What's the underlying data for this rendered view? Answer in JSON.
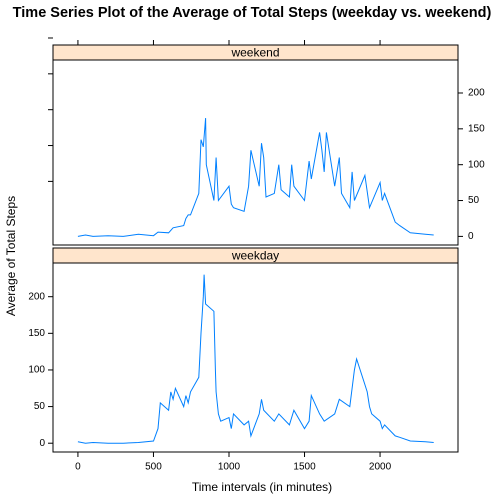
{
  "chart_data": {
    "type": "line",
    "title": "Time Series Plot of the Average of Total Steps (weekday vs. weekend)",
    "xlabel": "Time intervals (in minutes)",
    "ylabel": "Average of Total Steps",
    "xlim": [
      -165,
      2516
    ],
    "xticks": [
      0,
      500,
      1000,
      1500,
      2000
    ],
    "ylim": [
      -12,
      246
    ],
    "yticks": [
      0,
      50,
      100,
      150,
      200
    ],
    "series": [
      {
        "name": "weekend",
        "color": "#0080ff",
        "x": [
          0,
          50,
          100,
          200,
          300,
          400,
          500,
          530,
          600,
          630,
          700,
          715,
          730,
          745,
          800,
          815,
          830,
          845,
          850,
          900,
          915,
          930,
          1000,
          1015,
          1030,
          1100,
          1130,
          1145,
          1200,
          1215,
          1230,
          1245,
          1300,
          1330,
          1345,
          1400,
          1415,
          1430,
          1500,
          1530,
          1545,
          1600,
          1615,
          1630,
          1645,
          1700,
          1730,
          1745,
          1800,
          1815,
          1830,
          1900,
          1930,
          2000,
          2015,
          2030,
          2100,
          2130,
          2200,
          2300,
          2355
        ],
        "values": [
          0,
          2,
          0,
          1,
          0,
          3,
          1,
          6,
          5,
          12,
          15,
          25,
          30,
          30,
          60,
          135,
          125,
          165,
          100,
          50,
          110,
          50,
          70,
          45,
          40,
          35,
          70,
          120,
          70,
          130,
          110,
          55,
          60,
          100,
          65,
          55,
          100,
          70,
          50,
          105,
          80,
          145,
          120,
          90,
          145,
          70,
          110,
          60,
          40,
          90,
          50,
          85,
          40,
          75,
          50,
          60,
          20,
          15,
          5,
          3,
          2
        ]
      },
      {
        "name": "weekday",
        "color": "#0080ff",
        "x": [
          0,
          50,
          100,
          200,
          300,
          400,
          500,
          530,
          545,
          600,
          615,
          630,
          645,
          700,
          715,
          730,
          745,
          800,
          815,
          830,
          835,
          845,
          900,
          910,
          915,
          930,
          945,
          1000,
          1015,
          1030,
          1100,
          1130,
          1145,
          1200,
          1215,
          1230,
          1300,
          1330,
          1400,
          1430,
          1500,
          1530,
          1545,
          1600,
          1630,
          1700,
          1730,
          1800,
          1830,
          1845,
          1900,
          1915,
          1930,
          1945,
          2000,
          2015,
          2030,
          2100,
          2130,
          2200,
          2300,
          2355
        ],
        "values": [
          2,
          0,
          1,
          0,
          0,
          1,
          3,
          20,
          55,
          45,
          70,
          60,
          75,
          50,
          65,
          55,
          70,
          90,
          150,
          200,
          230,
          190,
          180,
          100,
          70,
          40,
          30,
          35,
          20,
          40,
          25,
          30,
          10,
          40,
          60,
          45,
          30,
          40,
          25,
          45,
          20,
          30,
          65,
          40,
          30,
          40,
          60,
          50,
          100,
          115,
          80,
          70,
          50,
          40,
          30,
          20,
          25,
          10,
          8,
          3,
          2,
          1
        ]
      }
    ]
  }
}
